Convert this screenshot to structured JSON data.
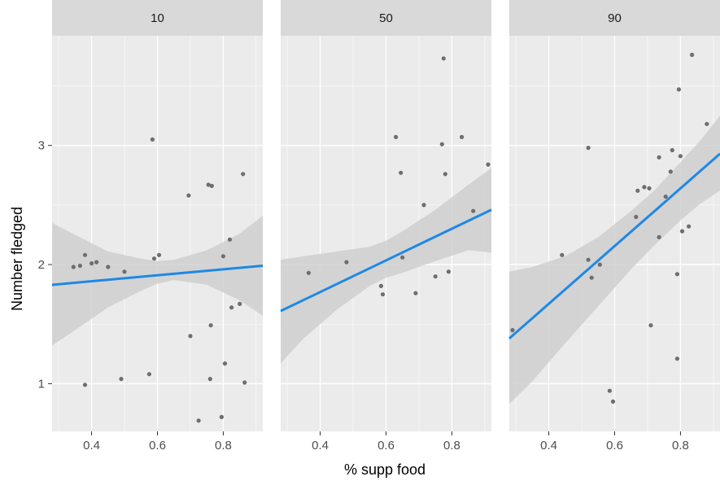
{
  "chart_data": {
    "type": "scatter",
    "xlabel": "% supp food",
    "ylabel": "Number fledged",
    "xlim": [
      0.28,
      0.92
    ],
    "ylim": [
      0.6,
      3.92
    ],
    "x_ticks": [
      0.4,
      0.6,
      0.8
    ],
    "x_tick_labels": [
      "0.4",
      "0.6",
      "0.8"
    ],
    "y_ticks": [
      1,
      2,
      3
    ],
    "y_tick_labels": [
      "1",
      "2",
      "3"
    ],
    "grid": true,
    "colors": {
      "panel_bg": "#ebebeb",
      "strip_bg": "#d9d9d9",
      "grid": "#ffffff",
      "points": "#6e6e6e",
      "line": "#1e88e5",
      "ribbon": "#cfcfcf",
      "tick_text": "#4d4d4d",
      "tick_mark": "#333333"
    },
    "panels": [
      {
        "label": "10",
        "points": [
          [
            0.345,
            1.98
          ],
          [
            0.365,
            1.99
          ],
          [
            0.38,
            2.08
          ],
          [
            0.38,
            0.99
          ],
          [
            0.4,
            2.01
          ],
          [
            0.415,
            2.02
          ],
          [
            0.45,
            1.98
          ],
          [
            0.49,
            1.04
          ],
          [
            0.5,
            1.94
          ],
          [
            0.575,
            1.08
          ],
          [
            0.585,
            3.05
          ],
          [
            0.59,
            2.05
          ],
          [
            0.605,
            2.08
          ],
          [
            0.695,
            2.58
          ],
          [
            0.7,
            1.4
          ],
          [
            0.725,
            0.69
          ],
          [
            0.755,
            2.67
          ],
          [
            0.76,
            1.04
          ],
          [
            0.762,
            1.49
          ],
          [
            0.765,
            2.66
          ],
          [
            0.795,
            0.72
          ],
          [
            0.8,
            2.07
          ],
          [
            0.805,
            1.17
          ],
          [
            0.82,
            2.21
          ],
          [
            0.825,
            1.64
          ],
          [
            0.85,
            1.67
          ],
          [
            0.86,
            2.76
          ],
          [
            0.865,
            1.01
          ]
        ],
        "fit": {
          "x": [
            0.28,
            0.92
          ],
          "y": [
            1.83,
            1.99
          ]
        },
        "ribbon": {
          "x": [
            0.28,
            0.35,
            0.45,
            0.55,
            0.6,
            0.65,
            0.75,
            0.85,
            0.92
          ],
          "upper": [
            2.35,
            2.25,
            2.11,
            2.05,
            2.03,
            2.04,
            2.12,
            2.26,
            2.41
          ],
          "lower": [
            1.32,
            1.45,
            1.64,
            1.78,
            1.84,
            1.87,
            1.83,
            1.7,
            1.57
          ]
        }
      },
      {
        "label": "50",
        "points": [
          [
            0.365,
            1.93
          ],
          [
            0.48,
            2.02
          ],
          [
            0.585,
            1.82
          ],
          [
            0.59,
            1.75
          ],
          [
            0.63,
            3.07
          ],
          [
            0.645,
            2.77
          ],
          [
            0.65,
            2.06
          ],
          [
            0.69,
            1.76
          ],
          [
            0.715,
            2.5
          ],
          [
            0.75,
            1.9
          ],
          [
            0.77,
            3.01
          ],
          [
            0.775,
            3.73
          ],
          [
            0.78,
            2.76
          ],
          [
            0.79,
            1.94
          ],
          [
            0.83,
            3.07
          ],
          [
            0.865,
            2.45
          ],
          [
            0.91,
            2.84
          ]
        ],
        "fit": {
          "x": [
            0.28,
            0.92
          ],
          "y": [
            1.61,
            2.46
          ]
        },
        "ribbon": {
          "x": [
            0.28,
            0.35,
            0.45,
            0.55,
            0.6,
            0.65,
            0.75,
            0.85,
            0.92
          ],
          "upper": [
            2.04,
            2.07,
            2.11,
            2.15,
            2.2,
            2.28,
            2.46,
            2.67,
            2.81
          ],
          "lower": [
            1.17,
            1.38,
            1.62,
            1.82,
            1.89,
            1.93,
            2.03,
            2.12,
            2.1
          ]
        }
      },
      {
        "label": "90",
        "points": [
          [
            0.29,
            1.45
          ],
          [
            0.44,
            2.08
          ],
          [
            0.52,
            2.98
          ],
          [
            0.52,
            2.04
          ],
          [
            0.53,
            1.89
          ],
          [
            0.555,
            2.0
          ],
          [
            0.585,
            0.94
          ],
          [
            0.595,
            0.85
          ],
          [
            0.665,
            2.4
          ],
          [
            0.67,
            2.62
          ],
          [
            0.69,
            2.65
          ],
          [
            0.705,
            2.64
          ],
          [
            0.71,
            1.49
          ],
          [
            0.735,
            2.23
          ],
          [
            0.735,
            2.9
          ],
          [
            0.755,
            2.57
          ],
          [
            0.77,
            2.78
          ],
          [
            0.775,
            2.96
          ],
          [
            0.79,
            1.92
          ],
          [
            0.79,
            1.21
          ],
          [
            0.795,
            3.47
          ],
          [
            0.8,
            2.91
          ],
          [
            0.805,
            2.28
          ],
          [
            0.825,
            2.32
          ],
          [
            0.835,
            3.76
          ],
          [
            0.88,
            3.18
          ]
        ],
        "fit": {
          "x": [
            0.28,
            0.92
          ],
          "y": [
            1.38,
            2.93
          ]
        },
        "ribbon": {
          "x": [
            0.28,
            0.35,
            0.45,
            0.55,
            0.65,
            0.72,
            0.8,
            0.86,
            0.92
          ],
          "upper": [
            1.94,
            1.98,
            2.07,
            2.23,
            2.45,
            2.62,
            2.86,
            3.04,
            3.25
          ],
          "lower": [
            0.83,
            1.02,
            1.34,
            1.65,
            1.96,
            2.16,
            2.37,
            2.51,
            2.62
          ]
        }
      }
    ]
  }
}
